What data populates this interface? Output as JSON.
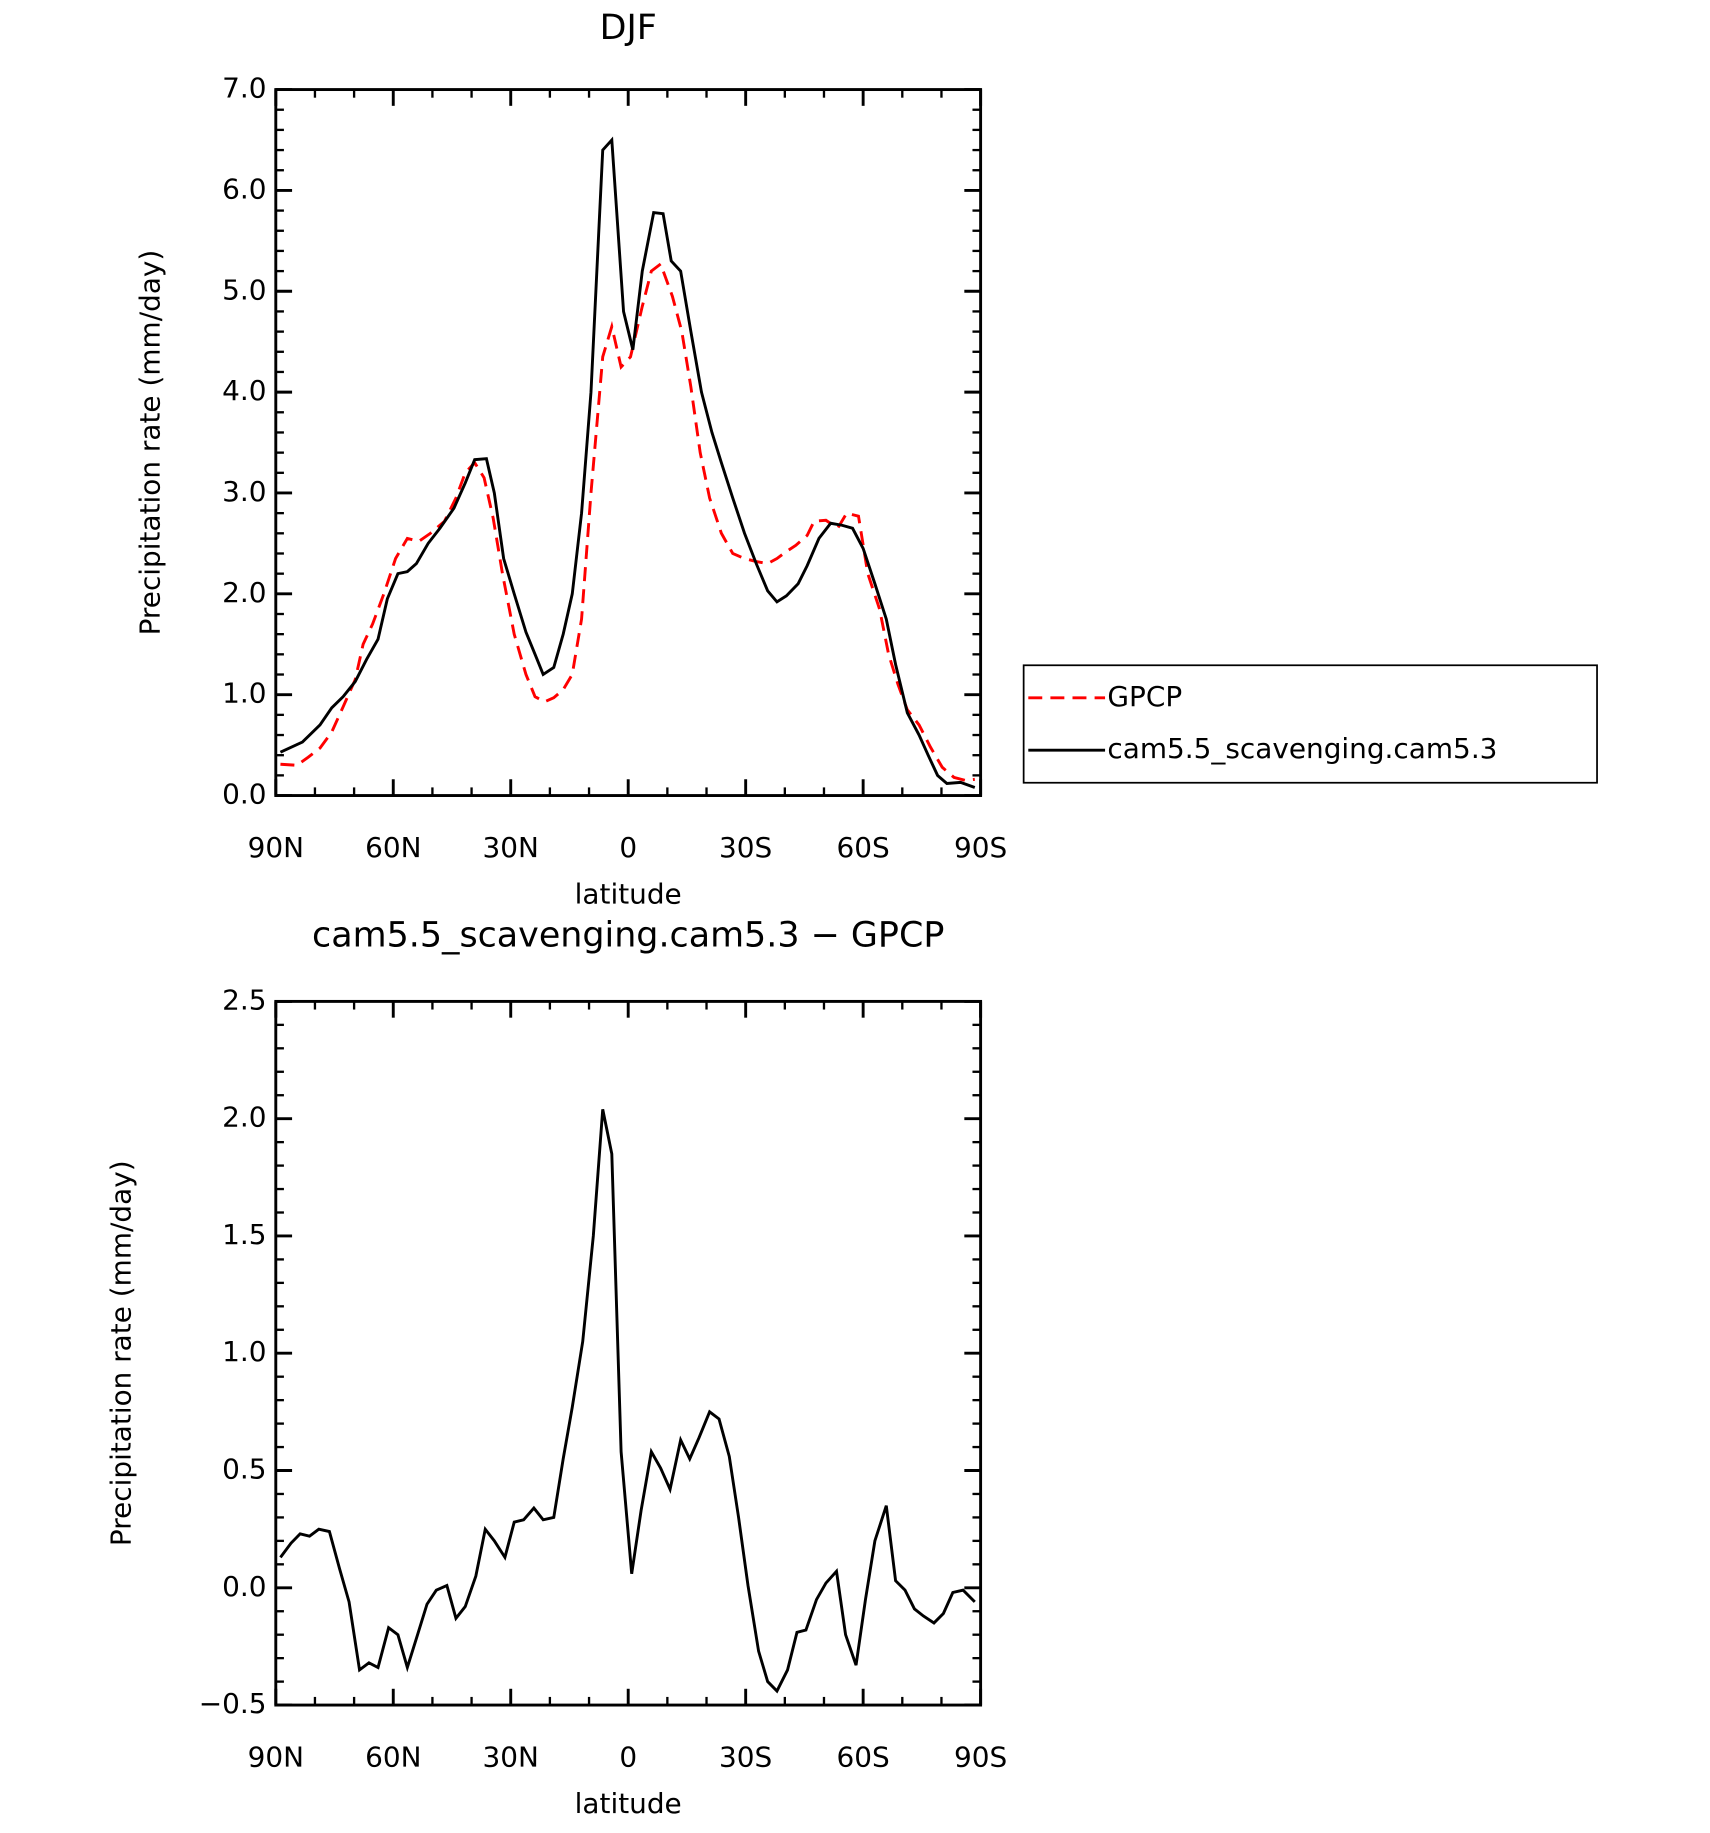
{
  "chart_data": [
    {
      "type": "line",
      "title": "DJF",
      "xlabel": "latitude",
      "ylabel": "Precipitation rate (mm/day)",
      "xlim": [
        90,
        -90
      ],
      "xticks": [
        {
          "value": 90,
          "label": "90N"
        },
        {
          "value": 60,
          "label": "60N"
        },
        {
          "value": 30,
          "label": "30N"
        },
        0,
        {
          "value": -30,
          "label": "30S"
        },
        {
          "value": -60,
          "label": "60S"
        },
        {
          "value": -90,
          "label": "90S"
        }
      ],
      "ylim": [
        0,
        7
      ],
      "yticks": [
        {
          "value": 0,
          "label": "0.0"
        },
        {
          "value": 1,
          "label": "1.0"
        },
        {
          "value": 2,
          "label": "2.0"
        },
        {
          "value": 3,
          "label": "3.0"
        },
        {
          "value": 4,
          "label": "4.0"
        },
        {
          "value": 5,
          "label": "5.0"
        },
        {
          "value": 6,
          "label": "6.0"
        },
        {
          "value": 7,
          "label": "7.0"
        }
      ],
      "legend": "outside right",
      "series": [
        {
          "name": "GPCP",
          "color": "#ff0000",
          "line_style": "dashed",
          "x": [
            88.8,
            84.6,
            81.7,
            78.7,
            75.7,
            72.8,
            69.7,
            67.7,
            65.3,
            62.4,
            59.4,
            56.4,
            53.5,
            50.5,
            46.9,
            44.0,
            41.6,
            39.2,
            36.8,
            34.5,
            32.1,
            29.1,
            26.1,
            23.8,
            21.4,
            19.0,
            16.6,
            14.3,
            11.9,
            9.5,
            6.5,
            4.2,
            1.8,
            -0.6,
            -3.6,
            -5.9,
            -8.3,
            -11.3,
            -13.7,
            -16.0,
            -18.4,
            -20.8,
            -23.8,
            -26.7,
            -29.7,
            -32.7,
            -35.6,
            -38.0,
            -40.4,
            -42.8,
            -45.7,
            -47.5,
            -50.5,
            -53.5,
            -55.8,
            -58.8,
            -61.2,
            -64.2,
            -66.5,
            -68.9,
            -71.3,
            -74.3,
            -77.2,
            -80.2,
            -83.2,
            -86.1,
            -88.5
          ],
          "values": [
            0.31,
            0.3,
            0.38,
            0.47,
            0.63,
            0.88,
            1.15,
            1.5,
            1.7,
            2.0,
            2.35,
            2.55,
            2.52,
            2.6,
            2.72,
            2.95,
            3.2,
            3.3,
            3.15,
            2.75,
            2.2,
            1.6,
            1.2,
            0.98,
            0.93,
            0.97,
            1.05,
            1.2,
            1.75,
            3.0,
            4.35,
            4.65,
            4.25,
            4.35,
            4.85,
            5.2,
            5.27,
            4.95,
            4.6,
            4.05,
            3.4,
            2.95,
            2.6,
            2.4,
            2.35,
            2.32,
            2.3,
            2.35,
            2.42,
            2.48,
            2.58,
            2.72,
            2.73,
            2.65,
            2.8,
            2.77,
            2.2,
            1.85,
            1.4,
            1.1,
            0.85,
            0.7,
            0.48,
            0.28,
            0.18,
            0.15,
            0.16
          ]
        },
        {
          "name": "cam5.5_scavenging.cam5.3",
          "color": "#000000",
          "line_style": "solid",
          "x": [
            88.8,
            83.2,
            78.7,
            75.7,
            72.8,
            69.7,
            66.8,
            63.9,
            61.5,
            58.8,
            56.4,
            54.1,
            51.1,
            48.1,
            44.5,
            41.6,
            39.2,
            36.2,
            34.2,
            31.8,
            29.1,
            26.1,
            23.8,
            21.7,
            19.0,
            16.6,
            14.3,
            11.9,
            9.5,
            6.5,
            4.2,
            1.2,
            -1.2,
            -3.6,
            -6.5,
            -8.9,
            -11.0,
            -13.4,
            -16.0,
            -18.7,
            -21.4,
            -23.8,
            -26.7,
            -29.7,
            -32.7,
            -35.6,
            -38.0,
            -40.4,
            -43.4,
            -45.7,
            -48.7,
            -51.7,
            -54.6,
            -57.3,
            -60.0,
            -63.0,
            -65.9,
            -68.3,
            -71.3,
            -74.3,
            -76.6,
            -79.0,
            -81.4,
            -84.9,
            -88.5
          ],
          "values": [
            0.43,
            0.53,
            0.7,
            0.87,
            0.98,
            1.13,
            1.35,
            1.55,
            1.95,
            2.2,
            2.22,
            2.3,
            2.5,
            2.65,
            2.85,
            3.1,
            3.33,
            3.34,
            3.0,
            2.35,
            2.0,
            1.62,
            1.4,
            1.2,
            1.27,
            1.6,
            2.0,
            2.8,
            4.0,
            6.4,
            6.5,
            4.8,
            4.42,
            5.2,
            5.78,
            5.77,
            5.3,
            5.2,
            4.6,
            4.0,
            3.6,
            3.3,
            2.95,
            2.6,
            2.3,
            2.03,
            1.92,
            1.98,
            2.1,
            2.28,
            2.55,
            2.7,
            2.68,
            2.65,
            2.45,
            2.1,
            1.75,
            1.3,
            0.82,
            0.6,
            0.4,
            0.2,
            0.12,
            0.13,
            0.08
          ]
        }
      ]
    },
    {
      "type": "line",
      "title": "cam5.5_scavenging.cam5.3 − GPCP",
      "xlabel": "latitude",
      "ylabel": "Precipitation rate (mm/day)",
      "xlim": [
        90,
        -90
      ],
      "xticks": [
        {
          "value": 90,
          "label": "90N"
        },
        {
          "value": 60,
          "label": "60N"
        },
        {
          "value": 30,
          "label": "30N"
        },
        0,
        {
          "value": -30,
          "label": "30S"
        },
        {
          "value": -60,
          "label": "60S"
        },
        {
          "value": -90,
          "label": "90S"
        }
      ],
      "ylim": [
        -0.5,
        2.5
      ],
      "yticks": [
        {
          "value": -0.5,
          "label": "−0.5"
        },
        {
          "value": 0,
          "label": "0.0"
        },
        0.5,
        {
          "value": 1,
          "label": "1.0"
        },
        1.5,
        {
          "value": 2,
          "label": "2.0"
        },
        2.5
      ],
      "series": [
        {
          "color": "#000000",
          "line_style": "solid",
          "x": [
            88.8,
            86.1,
            83.8,
            81.4,
            79.0,
            76.3,
            73.7,
            71.3,
            68.6,
            66.2,
            63.9,
            61.2,
            58.8,
            56.4,
            53.8,
            51.4,
            49.0,
            46.3,
            44.0,
            41.6,
            38.9,
            36.5,
            34.2,
            31.5,
            29.1,
            26.7,
            24.1,
            21.7,
            19.0,
            16.6,
            14.3,
            11.6,
            8.9,
            6.5,
            4.2,
            1.8,
            -0.9,
            -3.3,
            -5.9,
            -8.3,
            -10.7,
            -13.4,
            -15.7,
            -18.1,
            -20.8,
            -23.2,
            -25.8,
            -28.2,
            -30.6,
            -33.3,
            -35.6,
            -38.0,
            -40.7,
            -43.1,
            -45.4,
            -48.1,
            -50.5,
            -53.2,
            -55.5,
            -58.2,
            -60.6,
            -63.0,
            -65.9,
            -68.3,
            -70.7,
            -73.1,
            -75.4,
            -78.1,
            -80.5,
            -82.9,
            -85.5,
            -88.5
          ],
          "values": [
            0.13,
            0.19,
            0.23,
            0.22,
            0.25,
            0.24,
            0.08,
            -0.06,
            -0.35,
            -0.32,
            -0.34,
            -0.17,
            -0.2,
            -0.34,
            -0.2,
            -0.07,
            -0.01,
            0.01,
            -0.13,
            -0.08,
            0.05,
            0.25,
            0.2,
            0.13,
            0.28,
            0.29,
            0.34,
            0.29,
            0.3,
            0.55,
            0.77,
            1.05,
            1.5,
            2.04,
            1.85,
            0.58,
            0.06,
            0.33,
            0.58,
            0.51,
            0.42,
            0.63,
            0.55,
            0.64,
            0.75,
            0.72,
            0.56,
            0.3,
            0.01,
            -0.27,
            -0.4,
            -0.44,
            -0.35,
            -0.19,
            -0.18,
            -0.05,
            0.02,
            0.07,
            -0.2,
            -0.33,
            -0.05,
            0.2,
            0.35,
            0.03,
            -0.01,
            -0.09,
            -0.12,
            -0.15,
            -0.11,
            -0.02,
            -0.01,
            -0.06
          ]
        }
      ]
    }
  ]
}
